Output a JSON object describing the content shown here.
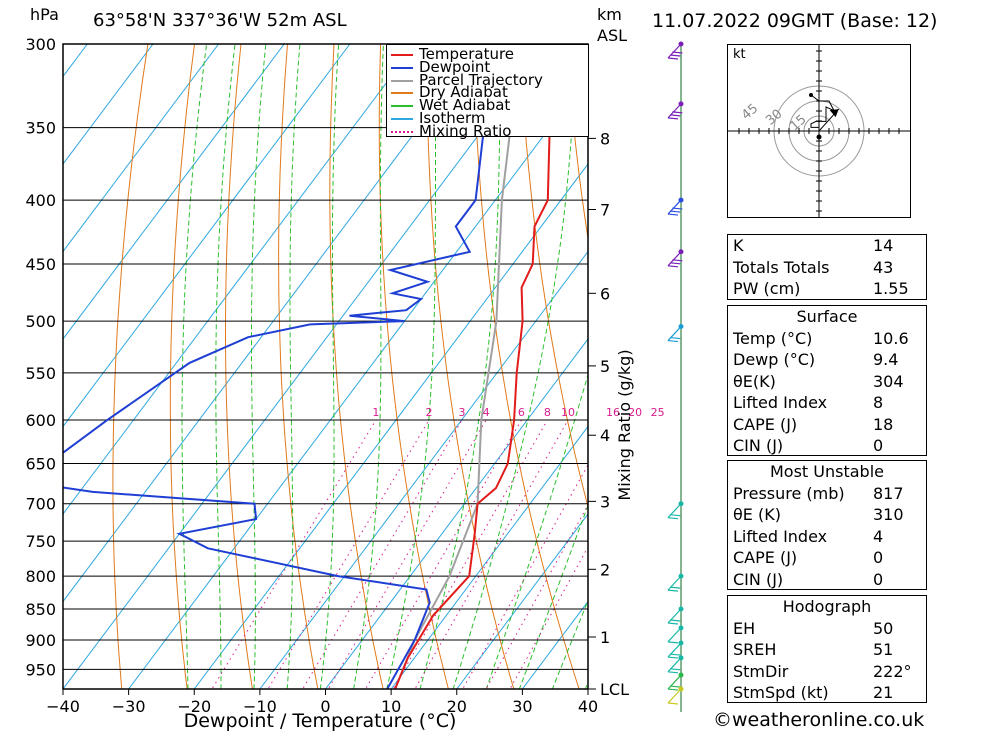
{
  "header": {
    "unit_left": "hPa",
    "location": "63°58'N  337°36'W  52m  ASL",
    "unit_km": "km",
    "unit_asl": "ASL",
    "datetime": "11.07.2022  09GMT  (Base: 12)"
  },
  "chart_data": {
    "type": "line",
    "title": "",
    "xlabel": "Dewpoint / Temperature (°C)",
    "ylabel": "hPa",
    "xlim": [
      -40,
      40
    ],
    "ylim": [
      1000,
      300
    ],
    "x_ticks": [
      -40,
      -30,
      -20,
      -10,
      0,
      10,
      20,
      30,
      40
    ],
    "pressure_ticks": [
      300,
      350,
      400,
      450,
      500,
      550,
      600,
      650,
      700,
      750,
      800,
      850,
      900,
      950
    ],
    "km_ticks": [
      {
        "label": "8",
        "p": 357
      },
      {
        "label": "7",
        "p": 407
      },
      {
        "label": "6",
        "p": 475
      },
      {
        "label": "5",
        "p": 543
      },
      {
        "label": "4",
        "p": 617
      },
      {
        "label": "3",
        "p": 697
      },
      {
        "label": "2",
        "p": 790
      },
      {
        "label": "1",
        "p": 895
      },
      {
        "label": "LCL",
        "p": 985
      }
    ],
    "mixing_ratio_axis_label": "Mixing Ratio (g/kg)",
    "mixing_ratio_labels": [
      "1",
      "2",
      "3",
      "4",
      "6",
      "8",
      "10",
      "16",
      "20",
      "25"
    ],
    "legend": {
      "position": "top-right",
      "entries": [
        {
          "name": "Temperature",
          "color": "#e21b1b",
          "style": "solid"
        },
        {
          "name": "Dewpoint",
          "color": "#1f3fd4",
          "style": "solid"
        },
        {
          "name": "Parcel Trajectory",
          "color": "#a0a0a0",
          "style": "solid"
        },
        {
          "name": "Dry Adiabat",
          "color": "#e07a1a",
          "style": "solid"
        },
        {
          "name": "Wet Adiabat",
          "color": "#2cbf2c",
          "style": "solid"
        },
        {
          "name": "Isotherm",
          "color": "#2fa8e0",
          "style": "solid"
        },
        {
          "name": "Mixing Ratio",
          "color": "#d81a8c",
          "style": "dotted"
        }
      ]
    },
    "series": [
      {
        "name": "Temperature",
        "color": "#e21b1b",
        "points": [
          [
            300,
            -39
          ],
          [
            350,
            -30
          ],
          [
            400,
            -22
          ],
          [
            420,
            -21
          ],
          [
            450,
            -17
          ],
          [
            470,
            -16
          ],
          [
            500,
            -12
          ],
          [
            550,
            -7
          ],
          [
            600,
            -2
          ],
          [
            650,
            2
          ],
          [
            680,
            3
          ],
          [
            700,
            2
          ],
          [
            740,
            5
          ],
          [
            800,
            9
          ],
          [
            860,
            8
          ],
          [
            930,
            9
          ],
          [
            985,
            10.6
          ]
        ]
      },
      {
        "name": "Dewpoint",
        "color": "#1f3fd4",
        "points": [
          [
            300,
            -44
          ],
          [
            350,
            -40
          ],
          [
            400,
            -33
          ],
          [
            420,
            -33
          ],
          [
            440,
            -28
          ],
          [
            455,
            -38
          ],
          [
            465,
            -31
          ],
          [
            475,
            -35
          ],
          [
            480,
            -30
          ],
          [
            490,
            -31
          ],
          [
            495,
            -39
          ],
          [
            500,
            -30
          ],
          [
            503,
            -44
          ],
          [
            515,
            -52
          ],
          [
            540,
            -58
          ],
          [
            600,
            -64
          ],
          [
            650,
            -68
          ],
          [
            675,
            -67
          ],
          [
            685,
            -58
          ],
          [
            700,
            -32
          ],
          [
            720,
            -30
          ],
          [
            740,
            -40
          ],
          [
            760,
            -34
          ],
          [
            800,
            -11
          ],
          [
            820,
            4
          ],
          [
            840,
            6
          ],
          [
            900,
            8
          ],
          [
            960,
            9
          ],
          [
            985,
            9.4
          ]
        ]
      },
      {
        "name": "Parcel Trajectory",
        "color": "#a0a0a0",
        "points": [
          [
            300,
            -44
          ],
          [
            400,
            -29
          ],
          [
            500,
            -16
          ],
          [
            600,
            -7
          ],
          [
            700,
            2
          ],
          [
            800,
            6
          ],
          [
            900,
            8
          ],
          [
            985,
            10.6
          ]
        ]
      }
    ],
    "winds": [
      {
        "p": 300,
        "speed_kt": 30,
        "color": "#7a1fb8"
      },
      {
        "p": 335,
        "speed_kt": 30,
        "color": "#7a1fb8"
      },
      {
        "p": 400,
        "speed_kt": 25,
        "color": "#2a4ee0"
      },
      {
        "p": 440,
        "speed_kt": 30,
        "color": "#7a1fb8"
      },
      {
        "p": 505,
        "speed_kt": 20,
        "color": "#1a9cd6"
      },
      {
        "p": 700,
        "speed_kt": 15,
        "color": "#18b8a8"
      },
      {
        "p": 800,
        "speed_kt": 15,
        "color": "#18b8a8"
      },
      {
        "p": 850,
        "speed_kt": 15,
        "color": "#18b8a8"
      },
      {
        "p": 880,
        "speed_kt": 10,
        "color": "#18b8a8"
      },
      {
        "p": 905,
        "speed_kt": 15,
        "color": "#18b8a8"
      },
      {
        "p": 930,
        "speed_kt": 15,
        "color": "#18b8a8"
      },
      {
        "p": 960,
        "speed_kt": 15,
        "color": "#2bb84a"
      },
      {
        "p": 985,
        "speed_kt": 10,
        "color": "#c8c820"
      }
    ]
  },
  "hodograph": {
    "unit": "kt",
    "ring_labels": [
      "15",
      "30",
      "45"
    ],
    "trace": [
      [
        0,
        -5
      ],
      [
        0,
        3
      ],
      [
        -8,
        3
      ],
      [
        -8,
        6
      ],
      [
        -3,
        8
      ],
      [
        7,
        8
      ],
      [
        7,
        20
      ],
      [
        15,
        17
      ],
      [
        10,
        25
      ],
      [
        0,
        25
      ],
      [
        -8,
        30
      ]
    ],
    "storm_motion": {
      "dir_deg": 222,
      "speed_kt": 21
    }
  },
  "indices": {
    "basic": [
      {
        "label": "K",
        "value": "14"
      },
      {
        "label": "Totals Totals",
        "value": "43"
      },
      {
        "label": "PW (cm)",
        "value": "1.55"
      }
    ],
    "surface": {
      "title": "Surface",
      "rows": [
        {
          "label": "Temp (°C)",
          "value": "10.6"
        },
        {
          "label": "Dewp (°C)",
          "value": "9.4"
        },
        {
          "label": "θE(K)",
          "value": "304"
        },
        {
          "label": "Lifted Index",
          "value": "8"
        },
        {
          "label": "CAPE (J)",
          "value": "18"
        },
        {
          "label": "CIN (J)",
          "value": "0"
        }
      ]
    },
    "most_unstable": {
      "title": "Most Unstable",
      "rows": [
        {
          "label": "Pressure (mb)",
          "value": "817"
        },
        {
          "label": "θE (K)",
          "value": "310"
        },
        {
          "label": "Lifted Index",
          "value": "4"
        },
        {
          "label": "CAPE (J)",
          "value": "0"
        },
        {
          "label": "CIN (J)",
          "value": "0"
        }
      ]
    },
    "hodograph": {
      "title": "Hodograph",
      "rows": [
        {
          "label": "EH",
          "value": "50"
        },
        {
          "label": "SREH",
          "value": "51"
        },
        {
          "label": "StmDir",
          "value": "222°"
        },
        {
          "label": "StmSpd (kt)",
          "value": "21"
        }
      ]
    }
  },
  "footer": {
    "copyright": "©weatheronline.co.uk"
  }
}
